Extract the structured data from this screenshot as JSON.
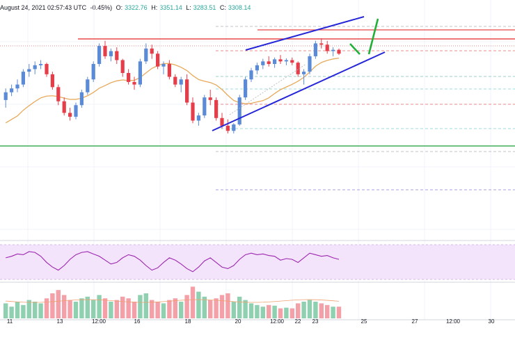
{
  "header": {
    "date_time": "August 24, 2021 02:57:43 UTC",
    "change": "-0.45%)",
    "open_label": "O:",
    "open": "3322.76",
    "high_label": "H:",
    "high": "3351.14",
    "low_label": "L:",
    "low": "3283.51",
    "close_label": "C:",
    "close": "3308.14"
  },
  "chart_data": {
    "type": "candlestick",
    "colors": {
      "up": "#5b8bd6",
      "down": "#e53e4a",
      "ma": "#e8a95a",
      "trendline": "#2626d9",
      "resistance": "#e84848",
      "support_green": "#3cae5a",
      "rsi_line": "#9c27b0",
      "rsi_band": "#f3e4fb",
      "vol_up": "#8fd0b0",
      "vol_down": "#f3a0a8",
      "dashed_red": "#e86666",
      "dashed_teal": "#7cc4b8",
      "dashed_purple": "#8a80d8",
      "green_arrow": "#22b03a"
    },
    "x_tick_labels": [
      "11",
      "13",
      "12:00",
      "16",
      "18",
      "20",
      "12:00",
      "22",
      "23",
      "25",
      "27",
      "12:00",
      "30"
    ],
    "candles": [
      [
        3240,
        3285,
        3210,
        3270
      ],
      [
        3270,
        3300,
        3255,
        3285
      ],
      [
        3285,
        3320,
        3270,
        3300
      ],
      [
        3300,
        3360,
        3290,
        3350
      ],
      [
        3350,
        3380,
        3330,
        3360
      ],
      [
        3360,
        3390,
        3340,
        3375
      ],
      [
        3375,
        3395,
        3360,
        3380
      ],
      [
        3380,
        3385,
        3330,
        3340
      ],
      [
        3340,
        3350,
        3280,
        3290
      ],
      [
        3290,
        3300,
        3220,
        3235
      ],
      [
        3235,
        3250,
        3180,
        3190
      ],
      [
        3190,
        3210,
        3160,
        3175
      ],
      [
        3175,
        3230,
        3165,
        3220
      ],
      [
        3220,
        3280,
        3210,
        3270
      ],
      [
        3270,
        3330,
        3260,
        3320
      ],
      [
        3320,
        3390,
        3310,
        3380
      ],
      [
        3380,
        3460,
        3370,
        3450
      ],
      [
        3450,
        3470,
        3400,
        3410
      ],
      [
        3410,
        3440,
        3390,
        3430
      ],
      [
        3430,
        3445,
        3380,
        3395
      ],
      [
        3395,
        3400,
        3330,
        3345
      ],
      [
        3345,
        3360,
        3300,
        3310
      ],
      [
        3310,
        3330,
        3280,
        3300
      ],
      [
        3300,
        3400,
        3290,
        3390
      ],
      [
        3390,
        3460,
        3380,
        3440
      ],
      [
        3440,
        3455,
        3400,
        3420
      ],
      [
        3420,
        3430,
        3360,
        3370
      ],
      [
        3370,
        3390,
        3340,
        3380
      ],
      [
        3380,
        3395,
        3320,
        3330
      ],
      [
        3330,
        3340,
        3290,
        3300
      ],
      [
        3300,
        3330,
        3270,
        3320
      ],
      [
        3320,
        3340,
        3220,
        3230
      ],
      [
        3230,
        3250,
        3150,
        3160
      ],
      [
        3160,
        3190,
        3140,
        3180
      ],
      [
        3180,
        3260,
        3170,
        3250
      ],
      [
        3250,
        3280,
        3220,
        3240
      ],
      [
        3240,
        3250,
        3160,
        3170
      ],
      [
        3170,
        3190,
        3130,
        3140
      ],
      [
        3140,
        3165,
        3110,
        3120
      ],
      [
        3120,
        3150,
        3110,
        3145
      ],
      [
        3145,
        3260,
        3140,
        3250
      ],
      [
        3250,
        3330,
        3240,
        3320
      ],
      [
        3320,
        3365,
        3310,
        3355
      ],
      [
        3355,
        3385,
        3340,
        3375
      ],
      [
        3375,
        3400,
        3360,
        3390
      ],
      [
        3390,
        3410,
        3370,
        3380
      ],
      [
        3380,
        3405,
        3365,
        3398
      ],
      [
        3398,
        3415,
        3380,
        3390
      ],
      [
        3390,
        3402,
        3375,
        3395
      ],
      [
        3395,
        3405,
        3375,
        3385
      ],
      [
        3385,
        3390,
        3330,
        3340
      ],
      [
        3340,
        3360,
        3300,
        3350
      ],
      [
        3350,
        3420,
        3340,
        3410
      ],
      [
        3410,
        3470,
        3400,
        3460
      ],
      [
        3460,
        3480,
        3440,
        3455
      ],
      [
        3455,
        3470,
        3420,
        3430
      ],
      [
        3430,
        3445,
        3410,
        3435
      ],
      [
        3435,
        3440,
        3415,
        3420
      ]
    ],
    "rsi": [
      58,
      60,
      63,
      62,
      66,
      65,
      60,
      52,
      46,
      42,
      48,
      56,
      62,
      65,
      66,
      63,
      60,
      55,
      50,
      52,
      58,
      62,
      60,
      55,
      48,
      42,
      45,
      52,
      58,
      55,
      50,
      44,
      40,
      46,
      54,
      58,
      52,
      46,
      44,
      48,
      56,
      62,
      64,
      62,
      63,
      61,
      60,
      55,
      57,
      56,
      52,
      58,
      64,
      62,
      60,
      61,
      58,
      56
    ],
    "volume": [
      0.45,
      0.35,
      0.5,
      0.4,
      0.55,
      0.5,
      0.45,
      0.6,
      0.75,
      0.85,
      0.7,
      0.55,
      0.5,
      0.6,
      0.65,
      0.55,
      0.7,
      0.6,
      0.5,
      0.55,
      0.65,
      0.6,
      0.5,
      0.7,
      0.75,
      0.55,
      0.5,
      0.45,
      0.55,
      0.6,
      0.5,
      0.7,
      0.95,
      0.8,
      0.65,
      0.55,
      0.6,
      0.7,
      0.75,
      0.5,
      0.65,
      0.55,
      0.45,
      0.4,
      0.35,
      0.4,
      0.38,
      0.3,
      0.32,
      0.3,
      0.45,
      0.5,
      0.55,
      0.5,
      0.45,
      0.4,
      0.35,
      0.35
    ]
  }
}
